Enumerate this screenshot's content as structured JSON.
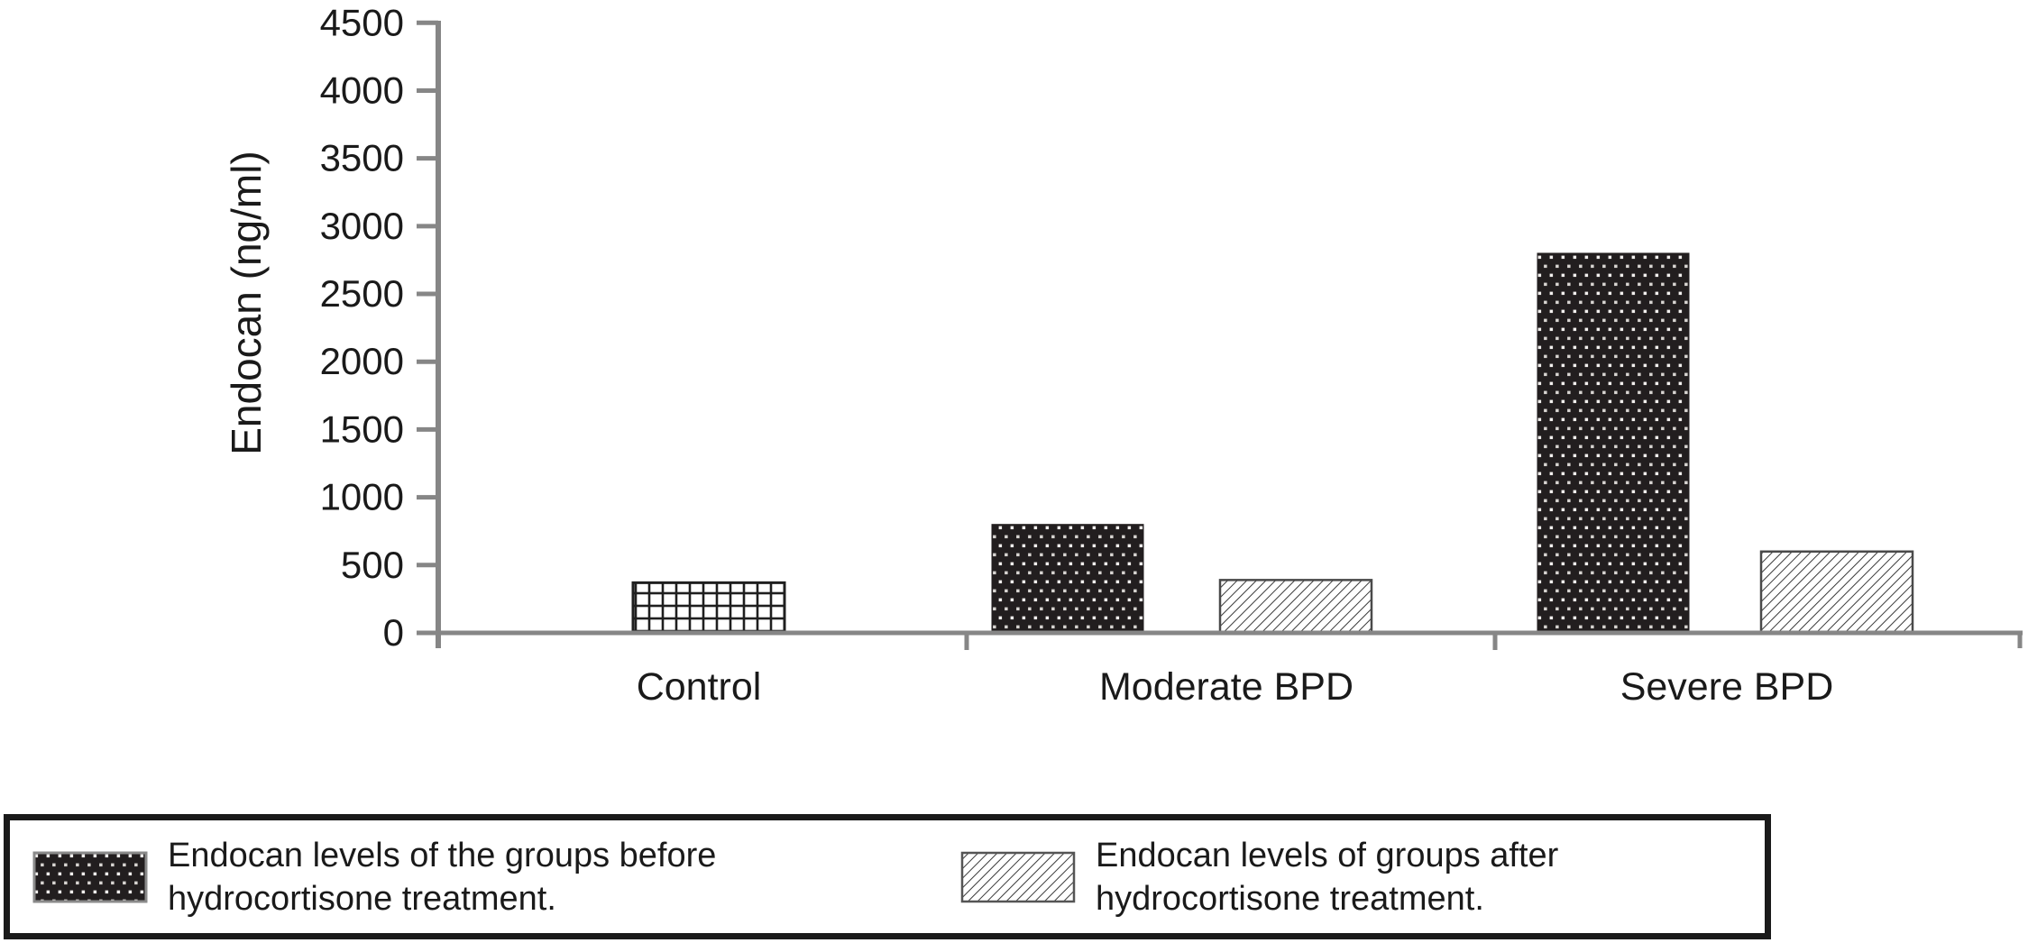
{
  "palette": {
    "background": "#ffffff",
    "axis_gray": "#868686",
    "text": "#1a1a1a",
    "bar_black": "#221e1f",
    "hatch_line": "#3a3a3a",
    "grid_line": "#1f1f1f"
  },
  "chart_data": {
    "type": "bar",
    "title": "",
    "xlabel": "",
    "ylabel": "Endocan (ng/ml)",
    "ylim": [
      0,
      4500
    ],
    "yticks": [
      0,
      500,
      1000,
      1500,
      2000,
      2500,
      3000,
      3500,
      4000,
      4500
    ],
    "grid": false,
    "legend_position": "bottom",
    "categories": [
      "Control",
      "Moderate BPD",
      "Severe BPD"
    ],
    "series": [
      {
        "name": "Endocan levels of the groups before hydrocortisone treatment.",
        "pattern": "dots-on-black",
        "values": [
          null,
          800,
          2800
        ]
      },
      {
        "name": "Endocan levels of groups after hydrocortisone treatment.",
        "pattern": "diagonal-hatch",
        "values": [
          null,
          390,
          600
        ]
      }
    ],
    "bars": [
      {
        "category": "Control",
        "group": "control",
        "pattern": "grid",
        "value": 370
      },
      {
        "category": "Moderate BPD",
        "group": "before",
        "pattern": "dots",
        "value": 800
      },
      {
        "category": "Moderate BPD",
        "group": "after",
        "pattern": "hatch",
        "value": 390
      },
      {
        "category": "Severe BPD",
        "group": "before",
        "pattern": "dots",
        "value": 2800
      },
      {
        "category": "Severe BPD",
        "group": "after",
        "pattern": "hatch",
        "value": 600
      }
    ]
  },
  "legend": {
    "items": [
      {
        "pattern": "dots",
        "label_line1": "Endocan levels of the groups before",
        "label_line2": "hydrocortisone treatment."
      },
      {
        "pattern": "hatch",
        "label_line1": "Endocan levels of groups after",
        "label_line2": "hydrocortisone treatment."
      }
    ]
  }
}
